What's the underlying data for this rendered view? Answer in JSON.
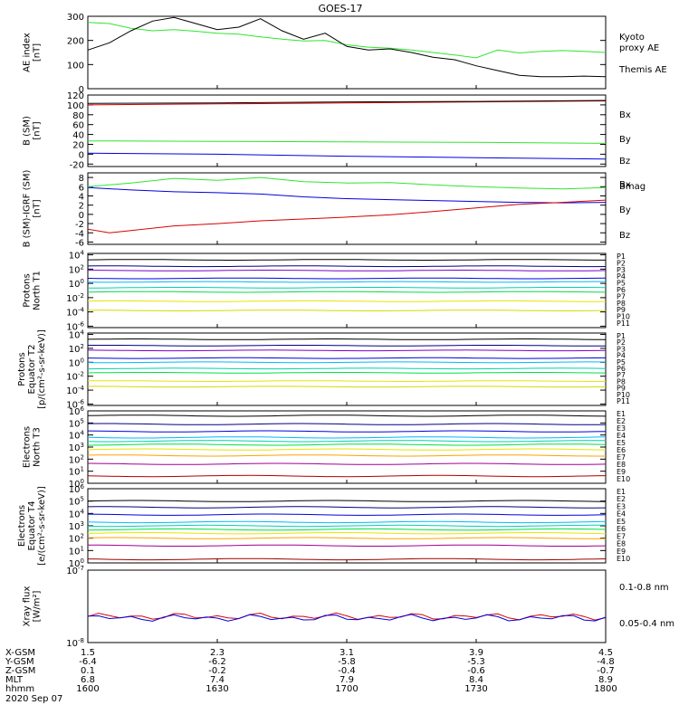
{
  "title": "GOES-17",
  "colors": {
    "black": "#000000",
    "green": "#2ee62e",
    "red": "#d80000",
    "blue": "#0000e0",
    "navy": "#000080",
    "purple": "#7a00c8",
    "cyan": "#00b8ff",
    "teal": "#00d0b0",
    "lgreen": "#00e040",
    "yellow": "#e6e600",
    "olive": "#d8d800",
    "orange": "#ffa000",
    "dorange": "#e05000",
    "magenta": "#a00090",
    "brown": "#b00000",
    "dred": "#a00000"
  },
  "chart_data": [
    {
      "id": "ae",
      "type": "line",
      "ylabel": "AE index\n[nT]",
      "yscale": "linear",
      "ylim": [
        0,
        300
      ],
      "yticks": [
        0,
        100,
        200,
        300
      ],
      "xlim": [
        0,
        120
      ],
      "series": [
        {
          "name": "Kyoto\nproxy AE",
          "color": "green",
          "x": [
            0,
            5,
            10,
            15,
            20,
            25,
            30,
            35,
            40,
            45,
            50,
            55,
            60,
            65,
            70,
            75,
            80,
            85,
            90,
            95,
            100,
            105,
            110,
            115,
            120
          ],
          "y": [
            275,
            270,
            250,
            240,
            245,
            238,
            230,
            226,
            215,
            205,
            198,
            200,
            182,
            172,
            168,
            160,
            150,
            140,
            128,
            160,
            148,
            155,
            158,
            155,
            150
          ]
        },
        {
          "name": "Themis AE",
          "color": "black",
          "x": [
            0,
            5,
            10,
            15,
            20,
            25,
            30,
            35,
            40,
            45,
            50,
            55,
            60,
            65,
            70,
            75,
            80,
            85,
            90,
            95,
            100,
            105,
            110,
            115,
            120
          ],
          "y": [
            160,
            190,
            240,
            280,
            295,
            270,
            245,
            255,
            290,
            240,
            205,
            230,
            175,
            160,
            165,
            150,
            130,
            120,
            95,
            75,
            55,
            50,
            50,
            52,
            50
          ]
        }
      ]
    },
    {
      "id": "bsm",
      "type": "line",
      "ylabel": "B (SM)\n[nT]",
      "yscale": "linear",
      "ylim": [
        -25,
        120
      ],
      "yticks": [
        -20,
        0,
        20,
        40,
        60,
        80,
        100,
        120
      ],
      "xlim": [
        0,
        120
      ],
      "series": [
        {
          "name": "Bx",
          "color": "blue",
          "x": [
            0,
            30,
            60,
            90,
            120
          ],
          "y": [
            2,
            0,
            -4,
            -7,
            -10
          ]
        },
        {
          "name": "By",
          "color": "green",
          "x": [
            0,
            30,
            60,
            90,
            120
          ],
          "y": [
            27,
            26,
            25,
            24,
            22
          ]
        },
        {
          "name": "Bz",
          "color": "red",
          "x": [
            0,
            30,
            60,
            90,
            120
          ],
          "y": [
            100,
            102,
            104,
            106,
            108
          ]
        },
        {
          "name": "Bmag",
          "color": "black",
          "x": [
            0,
            30,
            60,
            90,
            120
          ],
          "y": [
            103,
            104,
            106,
            107,
            109
          ]
        }
      ]
    },
    {
      "id": "bdiff",
      "type": "line",
      "ylabel": "B (SM)-IGRF (SM)\n[nT]",
      "yscale": "linear",
      "ylim": [
        -6.5,
        9
      ],
      "yticks": [
        -6,
        -4,
        -2,
        0,
        2,
        4,
        6,
        8
      ],
      "xlim": [
        0,
        120
      ],
      "series": [
        {
          "name": "Bx",
          "color": "blue",
          "x": [
            0,
            10,
            20,
            30,
            40,
            50,
            60,
            70,
            80,
            90,
            100,
            110,
            120
          ],
          "y": [
            5.8,
            5.3,
            4.9,
            4.7,
            4.4,
            3.8,
            3.4,
            3.2,
            3.0,
            2.8,
            2.6,
            2.5,
            2.6
          ]
        },
        {
          "name": "By",
          "color": "green",
          "x": [
            0,
            10,
            20,
            30,
            40,
            50,
            60,
            70,
            80,
            90,
            100,
            110,
            120
          ],
          "y": [
            6.0,
            6.8,
            7.8,
            7.4,
            8.0,
            7.1,
            6.8,
            6.9,
            6.4,
            6.0,
            5.7,
            5.5,
            5.8
          ]
        },
        {
          "name": "Bz",
          "color": "red",
          "x": [
            0,
            5,
            10,
            20,
            30,
            40,
            50,
            60,
            70,
            80,
            90,
            100,
            110,
            120
          ],
          "y": [
            -3.2,
            -4.0,
            -3.5,
            -2.5,
            -2.0,
            -1.4,
            -1.0,
            -0.6,
            -0.1,
            0.6,
            1.4,
            2.2,
            2.6,
            3.1
          ]
        }
      ]
    },
    {
      "id": "pn",
      "type": "line",
      "ylabel": "Protons\nNorth T1",
      "yscale": "log",
      "ylim": [
        -6.2,
        4.2
      ],
      "yticks": [
        -6,
        -4,
        -2,
        0,
        2,
        4
      ],
      "xlim": [
        0,
        120
      ],
      "series": [
        {
          "name": "P1",
          "color": "black",
          "y": 3.3
        },
        {
          "name": "P2",
          "color": "navy",
          "y": 2.4
        },
        {
          "name": "P3",
          "color": "purple",
          "y": 1.8
        },
        {
          "name": "P4",
          "color": "blue",
          "y": 0.7
        },
        {
          "name": "P5",
          "color": "cyan",
          "y": 0.2
        },
        {
          "name": "P6",
          "color": "teal",
          "y": -0.6
        },
        {
          "name": "P7",
          "color": "lgreen",
          "y": -1.2
        },
        {
          "name": "P8",
          "color": "yellow",
          "y": -2.5
        },
        {
          "name": "P9",
          "color": "olive",
          "y": -3.8
        },
        {
          "name": "P10",
          "color": "orange",
          "y": null
        },
        {
          "name": "P11",
          "color": "dorange",
          "y": null
        }
      ]
    },
    {
      "id": "pe",
      "type": "line",
      "ylabel": "Protons\nEquator T2\n[p/(cm²-s-sr-keV)]",
      "yscale": "log",
      "ylim": [
        -6.2,
        4.2
      ],
      "yticks": [
        -6,
        -4,
        -2,
        0,
        2,
        4
      ],
      "xlim": [
        0,
        120
      ],
      "series": [
        {
          "name": "P1",
          "color": "black",
          "y": 3.3
        },
        {
          "name": "P2",
          "color": "navy",
          "y": 2.4
        },
        {
          "name": "P3",
          "color": "purple",
          "y": 1.7
        },
        {
          "name": "P4",
          "color": "blue",
          "y": 0.6
        },
        {
          "name": "P5",
          "color": "cyan",
          "y": 0.0
        },
        {
          "name": "P6",
          "color": "teal",
          "y": -0.9
        },
        {
          "name": "P7",
          "color": "lgreen",
          "y": -1.5
        },
        {
          "name": "P8",
          "color": "yellow",
          "y": -2.7
        },
        {
          "name": "P9",
          "color": "olive",
          "y": -3.5
        },
        {
          "name": "P10",
          "color": "orange",
          "y": null
        },
        {
          "name": "P11",
          "color": "dorange",
          "y": null
        }
      ]
    },
    {
      "id": "en",
      "type": "line",
      "ylabel": "Electrons\nNorth T3",
      "yscale": "log",
      "ylim": [
        0,
        6
      ],
      "yticks": [
        0,
        1,
        2,
        3,
        4,
        5,
        6
      ],
      "xlim": [
        0,
        120
      ],
      "series": [
        {
          "name": "E1",
          "color": "black",
          "y": 5.6
        },
        {
          "name": "E2",
          "color": "navy",
          "y": 4.9
        },
        {
          "name": "E3",
          "color": "blue",
          "y": 4.3
        },
        {
          "name": "E4",
          "color": "cyan",
          "y": 3.8
        },
        {
          "name": "E5",
          "color": "teal",
          "y": 3.5
        },
        {
          "name": "E6",
          "color": "lgreen",
          "y": 3.2
        },
        {
          "name": "E7",
          "color": "yellow",
          "y": 2.8
        },
        {
          "name": "E8",
          "color": "orange",
          "y": 2.3
        },
        {
          "name": "E9",
          "color": "magenta",
          "y": 1.6
        },
        {
          "name": "E10",
          "color": "brown",
          "y": 0.6
        }
      ]
    },
    {
      "id": "ee",
      "type": "line",
      "ylabel": "Electrons\nEquator T4\n[e/(cm²-s-sr-keV)]",
      "yscale": "log",
      "ylim": [
        0,
        6
      ],
      "yticks": [
        0,
        1,
        2,
        3,
        4,
        5,
        6
      ],
      "xlim": [
        0,
        120
      ],
      "series": [
        {
          "name": "E1",
          "color": "black",
          "y": 5.0
        },
        {
          "name": "E2",
          "color": "navy",
          "y": 4.5
        },
        {
          "name": "E3",
          "color": "blue",
          "y": 3.9
        },
        {
          "name": "E4",
          "color": "cyan",
          "y": 3.3
        },
        {
          "name": "E5",
          "color": "teal",
          "y": 3.0
        },
        {
          "name": "E6",
          "color": "lgreen",
          "y": 2.7
        },
        {
          "name": "E7",
          "color": "yellow",
          "y": 2.4
        },
        {
          "name": "E8",
          "color": "orange",
          "y": 2.0
        },
        {
          "name": "E9",
          "color": "magenta",
          "y": 1.4
        },
        {
          "name": "E10",
          "color": "dred",
          "y": 0.3
        }
      ]
    },
    {
      "id": "xray",
      "type": "line",
      "ylabel": "Xray flux\n[W/m²]",
      "yscale": "log",
      "ylim": [
        -8,
        -7
      ],
      "yticks": [
        -8,
        -7
      ],
      "xlim": [
        0,
        120
      ],
      "series": [
        {
          "name": "0.1-0.8 nm",
          "color": "red",
          "y": -7.64
        },
        {
          "name": "0.05-0.4 nm",
          "color": "blue",
          "y": -7.66
        }
      ]
    }
  ],
  "xaxis": {
    "row_labels": [
      "X-GSM",
      "Y-GSM",
      "Z-GSM",
      "MLT",
      "hhmm",
      "2020 Sep 07"
    ],
    "columns": [
      [
        "1.5",
        "-6.4",
        "0.1",
        "6.8",
        "1600"
      ],
      [
        "2.3",
        "-6.2",
        "-0.2",
        "7.4",
        "1630"
      ],
      [
        "3.1",
        "-5.8",
        "-0.4",
        "7.9",
        "1700"
      ],
      [
        "3.9",
        "-5.3",
        "-0.6",
        "8.4",
        "1730"
      ],
      [
        "4.5",
        "-4.8",
        "-0.7",
        "8.9",
        "1800"
      ]
    ]
  }
}
